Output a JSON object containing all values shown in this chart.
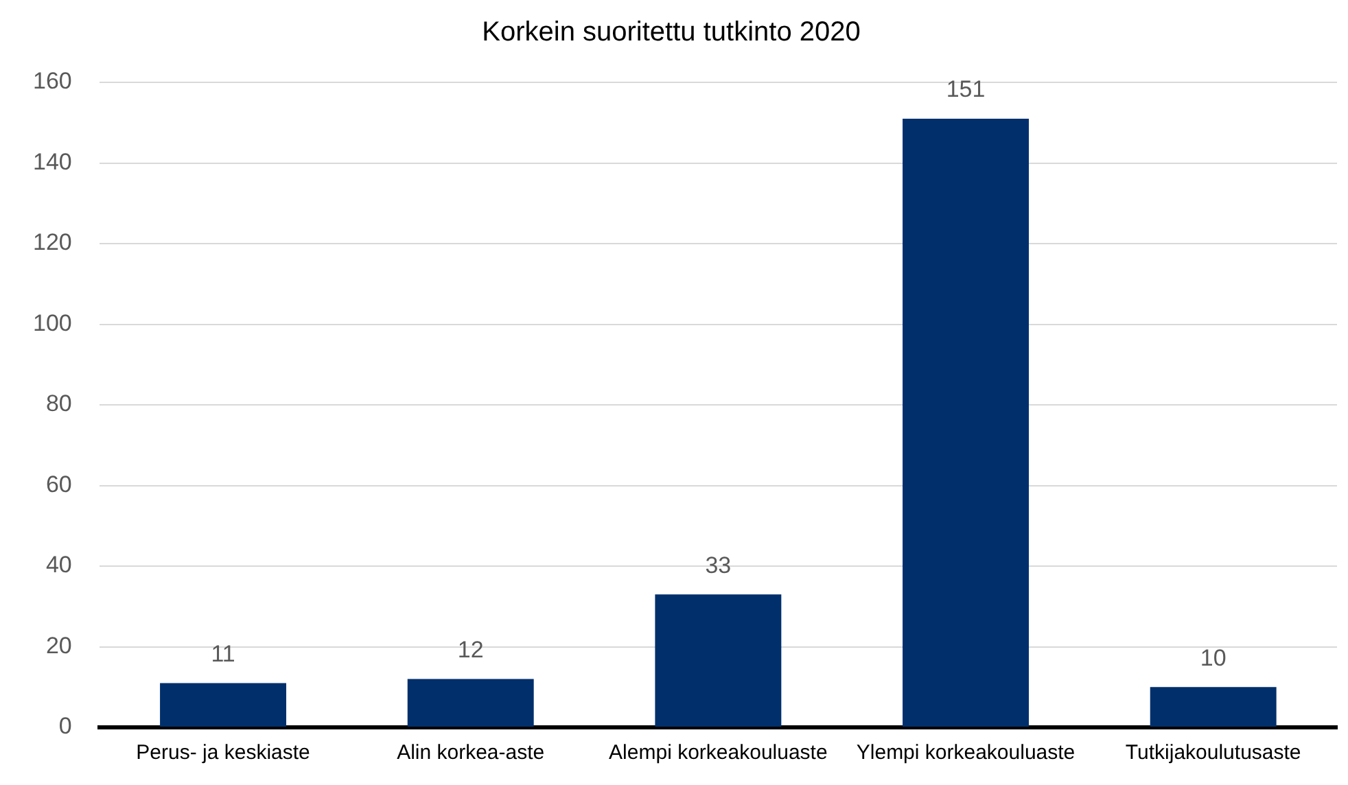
{
  "chart_data": {
    "type": "bar",
    "title": "Korkein suoritettu tutkinto 2020",
    "categories": [
      "Perus- ja keskiaste",
      "Alin korkea-aste",
      "Alempi korkeakouluaste",
      "Ylempi korkeakouluaste",
      "Tutkijakoulutusaste"
    ],
    "values": [
      11,
      12,
      33,
      151,
      10
    ],
    "color": "#002f6c",
    "ylim": [
      0,
      160
    ],
    "yticks": [
      0,
      20,
      40,
      60,
      80,
      100,
      120,
      140,
      160
    ],
    "grid": "y",
    "data_labels": true
  }
}
